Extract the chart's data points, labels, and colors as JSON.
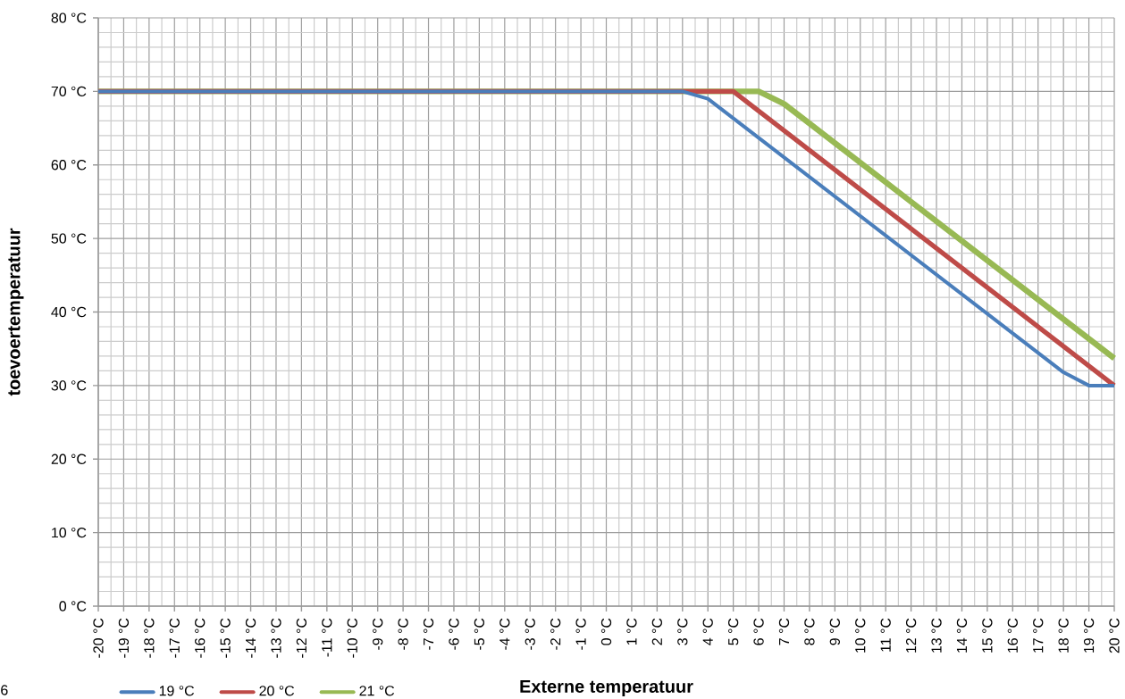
{
  "chart_data": {
    "type": "line",
    "xlabel": "Externe temperatuur",
    "ylabel": "toevoertemperatuur",
    "xlim": [
      -20,
      20
    ],
    "ylim": [
      0,
      80
    ],
    "xticks": [
      {
        "value": -20,
        "label": "-20 °C"
      },
      {
        "value": -19,
        "label": "-19 °C"
      },
      {
        "value": -18,
        "label": "-18 °C"
      },
      {
        "value": -17,
        "label": "-17 °C"
      },
      {
        "value": -16,
        "label": "-16 °C"
      },
      {
        "value": -15,
        "label": "-15 °C"
      },
      {
        "value": -14,
        "label": "-14 °C"
      },
      {
        "value": -13,
        "label": "-13 °C"
      },
      {
        "value": -12,
        "label": "-12 °C"
      },
      {
        "value": -11,
        "label": "-11 °C"
      },
      {
        "value": -10,
        "label": "-10 °C"
      },
      {
        "value": -9,
        "label": "-9 °C"
      },
      {
        "value": -8,
        "label": "-8 °C"
      },
      {
        "value": -7,
        "label": "-7 °C"
      },
      {
        "value": -6,
        "label": "-6 °C"
      },
      {
        "value": -5,
        "label": "-5 °C"
      },
      {
        "value": -4,
        "label": "-4 °C"
      },
      {
        "value": -3,
        "label": "-3 °C"
      },
      {
        "value": -2,
        "label": "-2 °C"
      },
      {
        "value": -1,
        "label": "-1 °C"
      },
      {
        "value": 0,
        "label": "0 °C"
      },
      {
        "value": 1,
        "label": "1 °C"
      },
      {
        "value": 2,
        "label": "2 °C"
      },
      {
        "value": 3,
        "label": "3 °C"
      },
      {
        "value": 4,
        "label": "4 °C"
      },
      {
        "value": 5,
        "label": "5 °C"
      },
      {
        "value": 6,
        "label": "6 °C"
      },
      {
        "value": 7,
        "label": "7 °C"
      },
      {
        "value": 8,
        "label": "8 °C"
      },
      {
        "value": 9,
        "label": "9 °C"
      },
      {
        "value": 10,
        "label": "10 °C"
      },
      {
        "value": 11,
        "label": "11 °C"
      },
      {
        "value": 12,
        "label": "12 °C"
      },
      {
        "value": 13,
        "label": "13 °C"
      },
      {
        "value": 14,
        "label": "14 °C"
      },
      {
        "value": 15,
        "label": "15 °C"
      },
      {
        "value": 16,
        "label": "16 °C"
      },
      {
        "value": 17,
        "label": "17 °C"
      },
      {
        "value": 18,
        "label": "18 °C"
      },
      {
        "value": 19,
        "label": "19 °C"
      },
      {
        "value": 20,
        "label": "20 °C"
      }
    ],
    "yticks": [
      {
        "value": 0,
        "label": "0 °C"
      },
      {
        "value": 10,
        "label": "10 °C"
      },
      {
        "value": 20,
        "label": "20 °C"
      },
      {
        "value": 30,
        "label": "30 °C"
      },
      {
        "value": 40,
        "label": "40 °C"
      },
      {
        "value": 50,
        "label": "50 °C"
      },
      {
        "value": 60,
        "label": "60 °C"
      },
      {
        "value": 70,
        "label": "70 °C"
      },
      {
        "value": 80,
        "label": "80 °C"
      }
    ],
    "series": [
      {
        "name": "19 °C",
        "color": "#4a7ebb",
        "x": [
          -20,
          3,
          4,
          18,
          19,
          20
        ],
        "values": [
          70,
          70,
          69,
          31.8,
          30,
          30
        ]
      },
      {
        "name": "20 °C",
        "color": "#be4b48",
        "x": [
          -20,
          5,
          20
        ],
        "values": [
          70,
          70,
          30
        ]
      },
      {
        "name": "21 °C",
        "color": "#98b954",
        "x": [
          -20,
          6,
          7,
          20
        ],
        "values": [
          70,
          70,
          68.3,
          33.7
        ]
      }
    ],
    "grid": true,
    "legend": "bottom",
    "annotations": [
      "6"
    ]
  }
}
